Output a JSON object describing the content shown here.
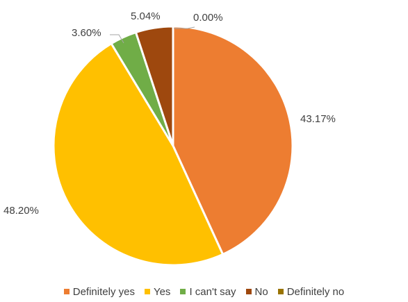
{
  "chart_data": {
    "type": "pie",
    "title": "",
    "start_angle_deg": 0,
    "direction": "clockwise",
    "slices": [
      {
        "label": "Definitely yes",
        "value": 43.17,
        "display": "43.17%",
        "color": "#ED7D31"
      },
      {
        "label": "Yes",
        "value": 48.2,
        "display": "48.20%",
        "color": "#FFC000"
      },
      {
        "label": "I can't say",
        "value": 3.6,
        "display": "3.60%",
        "color": "#70AD47"
      },
      {
        "label": "No",
        "value": 5.04,
        "display": "5.04%",
        "color": "#9E480E"
      },
      {
        "label": "Definitely no",
        "value": 0.0,
        "display": "0.00%",
        "color": "#997300"
      }
    ],
    "legend_position": "bottom",
    "data_labels": "outside"
  }
}
